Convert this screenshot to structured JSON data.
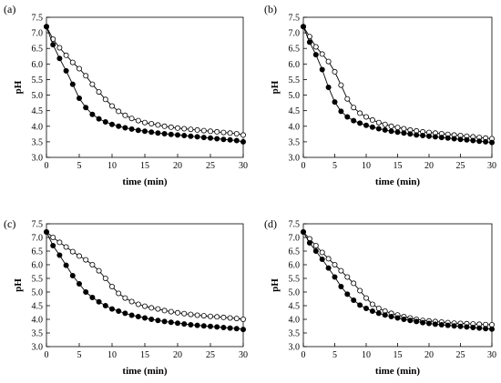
{
  "chart_data": [
    {
      "type": "scatter",
      "panel_label": "(a)",
      "xlabel": "time (min)",
      "ylabel": "pH",
      "xlim": [
        0,
        30
      ],
      "ylim": [
        3.0,
        7.5
      ],
      "xticks": [
        "0",
        "5",
        "10",
        "15",
        "20",
        "25",
        "30"
      ],
      "yticks": [
        "3.0",
        "3.5",
        "4.0",
        "4.5",
        "5.0",
        "5.5",
        "6.0",
        "6.5",
        "7.0",
        "7.5"
      ],
      "x": [
        0,
        1,
        2,
        3,
        4,
        5,
        6,
        7,
        8,
        9,
        10,
        11,
        12,
        13,
        14,
        15,
        16,
        17,
        18,
        19,
        20,
        21,
        22,
        23,
        24,
        25,
        26,
        27,
        28,
        29,
        30
      ],
      "series": [
        {
          "marker": "filled",
          "values": [
            7.2,
            6.62,
            6.18,
            5.78,
            5.35,
            4.9,
            4.6,
            4.38,
            4.24,
            4.14,
            4.06,
            4.0,
            3.95,
            3.91,
            3.87,
            3.84,
            3.81,
            3.78,
            3.76,
            3.74,
            3.72,
            3.7,
            3.68,
            3.66,
            3.64,
            3.62,
            3.6,
            3.58,
            3.56,
            3.54,
            3.5
          ]
        },
        {
          "marker": "open",
          "values": [
            7.2,
            6.8,
            6.52,
            6.28,
            6.05,
            5.85,
            5.62,
            5.35,
            5.1,
            4.86,
            4.65,
            4.48,
            4.35,
            4.25,
            4.18,
            4.12,
            4.08,
            4.04,
            4.0,
            3.97,
            3.94,
            3.92,
            3.9,
            3.88,
            3.86,
            3.84,
            3.82,
            3.8,
            3.78,
            3.76,
            3.72
          ]
        }
      ]
    },
    {
      "type": "scatter",
      "panel_label": "(b)",
      "xlabel": "time (min)",
      "ylabel": "pH",
      "xlim": [
        0,
        30
      ],
      "ylim": [
        3.0,
        7.5
      ],
      "xticks": [
        "0",
        "5",
        "10",
        "15",
        "20",
        "25",
        "30"
      ],
      "yticks": [
        "3.0",
        "3.5",
        "4.0",
        "4.5",
        "5.0",
        "5.5",
        "6.0",
        "6.5",
        "7.0",
        "7.5"
      ],
      "x": [
        0,
        1,
        2,
        3,
        4,
        5,
        6,
        7,
        8,
        9,
        10,
        11,
        12,
        13,
        14,
        15,
        16,
        17,
        18,
        19,
        20,
        21,
        22,
        23,
        24,
        25,
        26,
        27,
        28,
        29,
        30
      ],
      "series": [
        {
          "marker": "filled",
          "values": [
            7.2,
            6.7,
            6.3,
            5.82,
            5.25,
            4.78,
            4.48,
            4.3,
            4.18,
            4.1,
            4.03,
            3.97,
            3.92,
            3.88,
            3.84,
            3.81,
            3.78,
            3.75,
            3.72,
            3.7,
            3.68,
            3.66,
            3.64,
            3.62,
            3.6,
            3.58,
            3.56,
            3.54,
            3.52,
            3.5,
            3.48
          ]
        },
        {
          "marker": "open",
          "values": [
            7.2,
            6.88,
            6.55,
            6.32,
            6.08,
            5.75,
            5.32,
            4.88,
            4.6,
            4.42,
            4.3,
            4.2,
            4.12,
            4.06,
            4.0,
            3.96,
            3.92,
            3.88,
            3.85,
            3.82,
            3.8,
            3.78,
            3.76,
            3.74,
            3.72,
            3.7,
            3.68,
            3.66,
            3.64,
            3.62,
            3.6
          ]
        }
      ]
    },
    {
      "type": "scatter",
      "panel_label": "(c)",
      "xlabel": "time (min)",
      "ylabel": "pH",
      "xlim": [
        0,
        30
      ],
      "ylim": [
        3.0,
        7.5
      ],
      "xticks": [
        "0",
        "5",
        "10",
        "15",
        "20",
        "25",
        "30"
      ],
      "yticks": [
        "3.0",
        "3.5",
        "4.0",
        "4.5",
        "5.0",
        "5.5",
        "6.0",
        "6.5",
        "7.0",
        "7.5"
      ],
      "x": [
        0,
        1,
        2,
        3,
        4,
        5,
        6,
        7,
        8,
        9,
        10,
        11,
        12,
        13,
        14,
        15,
        16,
        17,
        18,
        19,
        20,
        21,
        22,
        23,
        24,
        25,
        26,
        27,
        28,
        29,
        30
      ],
      "series": [
        {
          "marker": "filled",
          "values": [
            7.2,
            6.7,
            6.35,
            5.98,
            5.6,
            5.3,
            5.0,
            4.8,
            4.64,
            4.5,
            4.38,
            4.3,
            4.22,
            4.15,
            4.1,
            4.05,
            4.0,
            3.96,
            3.92,
            3.89,
            3.86,
            3.83,
            3.8,
            3.78,
            3.76,
            3.74,
            3.72,
            3.7,
            3.68,
            3.66,
            3.63
          ]
        },
        {
          "marker": "open",
          "values": [
            7.2,
            7.0,
            6.82,
            6.65,
            6.48,
            6.32,
            6.18,
            6.0,
            5.78,
            5.5,
            5.2,
            4.95,
            4.78,
            4.65,
            4.55,
            4.48,
            4.42,
            4.38,
            4.32,
            4.28,
            4.24,
            4.21,
            4.18,
            4.15,
            4.13,
            4.11,
            4.09,
            4.07,
            4.05,
            4.03,
            4.0
          ]
        }
      ]
    },
    {
      "type": "scatter",
      "panel_label": "(d)",
      "xlabel": "time (min)",
      "ylabel": "pH",
      "xlim": [
        0,
        30
      ],
      "ylim": [
        3.0,
        7.5
      ],
      "xticks": [
        "0",
        "5",
        "10",
        "15",
        "20",
        "25",
        "30"
      ],
      "yticks": [
        "3.0",
        "3.5",
        "4.0",
        "4.5",
        "5.0",
        "5.5",
        "6.0",
        "6.5",
        "7.0",
        "7.5"
      ],
      "x": [
        0,
        1,
        2,
        3,
        4,
        5,
        6,
        7,
        8,
        9,
        10,
        11,
        12,
        13,
        14,
        15,
        16,
        17,
        18,
        19,
        20,
        21,
        22,
        23,
        24,
        25,
        26,
        27,
        28,
        29,
        30
      ],
      "series": [
        {
          "marker": "filled",
          "values": [
            7.2,
            6.8,
            6.5,
            6.2,
            5.88,
            5.55,
            5.2,
            4.92,
            4.7,
            4.52,
            4.4,
            4.3,
            4.22,
            4.16,
            4.1,
            4.05,
            4.0,
            3.96,
            3.92,
            3.88,
            3.85,
            3.82,
            3.8,
            3.78,
            3.76,
            3.74,
            3.72,
            3.7,
            3.68,
            3.66,
            3.64
          ]
        },
        {
          "marker": "open",
          "values": [
            7.2,
            6.95,
            6.7,
            6.45,
            6.22,
            6.0,
            5.78,
            5.55,
            5.32,
            5.05,
            4.78,
            4.55,
            4.4,
            4.3,
            4.22,
            4.16,
            4.1,
            4.05,
            4.0,
            3.96,
            3.94,
            3.92,
            3.9,
            3.88,
            3.86,
            3.85,
            3.84,
            3.83,
            3.82,
            3.81,
            3.8
          ]
        }
      ]
    }
  ]
}
